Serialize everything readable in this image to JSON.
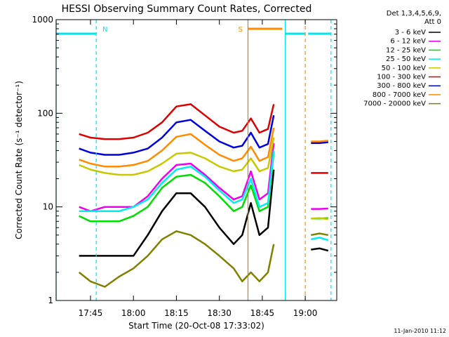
{
  "chart_data": {
    "type": "line",
    "title": "HESSI Observing Summary Count Rates, Corrected",
    "xlabel": "Start Time (20-Oct-08 17:33:02)",
    "ylabel": "Corrected Count Rate (s⁻¹ detector⁻¹)",
    "footer": "11-Jan-2010 11:12",
    "yscale": "log",
    "ylim": [
      1,
      1000
    ],
    "xlim": [
      "17:33",
      "19:11"
    ],
    "x_ticks": [
      "17:45",
      "18:00",
      "18:15",
      "18:30",
      "18:45",
      "19:00"
    ],
    "y_ticks": [
      "1",
      "10",
      "100",
      "1000"
    ],
    "legend_header": [
      "Det 1,3,4,5,6,9,",
      "Att 0"
    ],
    "legend_position": "right",
    "flags": [
      {
        "label": "N",
        "color": "#00e5ee",
        "start": "17:33",
        "end": "17:47"
      },
      {
        "label": "S",
        "color": "#ff8c00",
        "start": "18:40",
        "end": "18:52"
      },
      {
        "label": "",
        "color": "#00e5ee",
        "start": "18:53",
        "end": "19:00"
      },
      {
        "label": "",
        "color": "#00e5ee",
        "start": "19:01",
        "end": "19:09"
      }
    ],
    "markers": [
      {
        "time": "17:33",
        "color": "#00e5ee",
        "style": "solid"
      },
      {
        "time": "17:47",
        "color": "#00e5ee",
        "style": "dashed"
      },
      {
        "time": "18:40",
        "color": "#cc8800",
        "style": "solid"
      },
      {
        "time": "18:53",
        "color": "#00e5ee",
        "style": "solid"
      },
      {
        "time": "19:00",
        "color": "#ff8c00",
        "style": "dashed"
      },
      {
        "time": "19:09",
        "color": "#00e5ee",
        "style": "dashed"
      }
    ],
    "time_axis": [
      "17:41",
      "17:45",
      "17:50",
      "17:55",
      "18:00",
      "18:05",
      "18:10",
      "18:15",
      "18:20",
      "18:25",
      "18:30",
      "18:35",
      "18:38",
      "18:41",
      "18:44",
      "18:47",
      "18:49"
    ],
    "series": [
      {
        "name": "3 - 6 keV",
        "color": "#000000",
        "values": [
          3,
          3,
          3,
          3,
          3,
          5,
          9,
          14,
          14,
          10,
          6,
          4,
          5,
          11,
          5,
          6,
          25
        ]
      },
      {
        "name": "6 - 12 keV",
        "color": "#ee00ee",
        "values": [
          10,
          9,
          10,
          10,
          10,
          13,
          20,
          28,
          29,
          22,
          16,
          12,
          13,
          24,
          12,
          14,
          48
        ]
      },
      {
        "name": "12 - 25 keV",
        "color": "#00dd00",
        "values": [
          8,
          7,
          7,
          7,
          8,
          10,
          16,
          21,
          22,
          18,
          13,
          9,
          10,
          17,
          9,
          10,
          38
        ]
      },
      {
        "name": "25 - 50 keV",
        "color": "#00eeee",
        "values": [
          9,
          9,
          9,
          9,
          10,
          12,
          18,
          25,
          27,
          21,
          15,
          11,
          12,
          20,
          10,
          11,
          40
        ]
      },
      {
        "name": "50 - 100 keV",
        "color": "#c8c800",
        "values": [
          28,
          25,
          23,
          22,
          22,
          24,
          29,
          37,
          38,
          33,
          27,
          24,
          25,
          33,
          24,
          26,
          55
        ]
      },
      {
        "name": "100 - 300 keV",
        "color": "#dd0000",
        "values": [
          60,
          55,
          53,
          53,
          55,
          62,
          80,
          118,
          125,
          95,
          72,
          62,
          65,
          88,
          62,
          68,
          125
        ]
      },
      {
        "name": "300 - 800 keV",
        "color": "#0000dd",
        "values": [
          42,
          38,
          36,
          36,
          38,
          42,
          55,
          80,
          85,
          65,
          50,
          43,
          45,
          62,
          43,
          47,
          95
        ]
      },
      {
        "name": "800 - 7000 keV",
        "color": "#ff8c00",
        "values": [
          32,
          29,
          27,
          27,
          28,
          31,
          40,
          56,
          60,
          46,
          36,
          31,
          33,
          44,
          31,
          34,
          70
        ]
      },
      {
        "name": "7000 - 20000 keV",
        "color": "#808000",
        "values": [
          2,
          1.6,
          1.4,
          1.8,
          2.2,
          3,
          4.5,
          5.5,
          5,
          4,
          3,
          2.2,
          1.6,
          2,
          1.6,
          2,
          4
        ]
      }
    ],
    "time_axis_late": [
      "19:02",
      "19:05",
      "19:08"
    ],
    "series_late": [
      {
        "name": "3 - 6 keV",
        "values": [
          3.5,
          3.6,
          3.4
        ]
      },
      {
        "name": "6 - 12 keV",
        "values": [
          9.5,
          9.5,
          9.6
        ]
      },
      {
        "name": "12 - 25 keV",
        "values": [
          7.5,
          7.5,
          7.6
        ]
      },
      {
        "name": "25 - 50 keV",
        "values": [
          4.5,
          4.7,
          4.4
        ]
      },
      {
        "name": "50 - 100 keV",
        "values": [
          7.5,
          7.6,
          7.4
        ]
      },
      {
        "name": "100 - 300 keV",
        "values": [
          23,
          23,
          23
        ]
      },
      {
        "name": "300 - 800 keV",
        "values": [
          48,
          48,
          49
        ]
      },
      {
        "name": "800 - 7000 keV",
        "values": [
          50,
          50,
          51
        ]
      },
      {
        "name": "7000 - 20000 keV",
        "values": [
          5,
          5.2,
          5
        ]
      }
    ]
  }
}
